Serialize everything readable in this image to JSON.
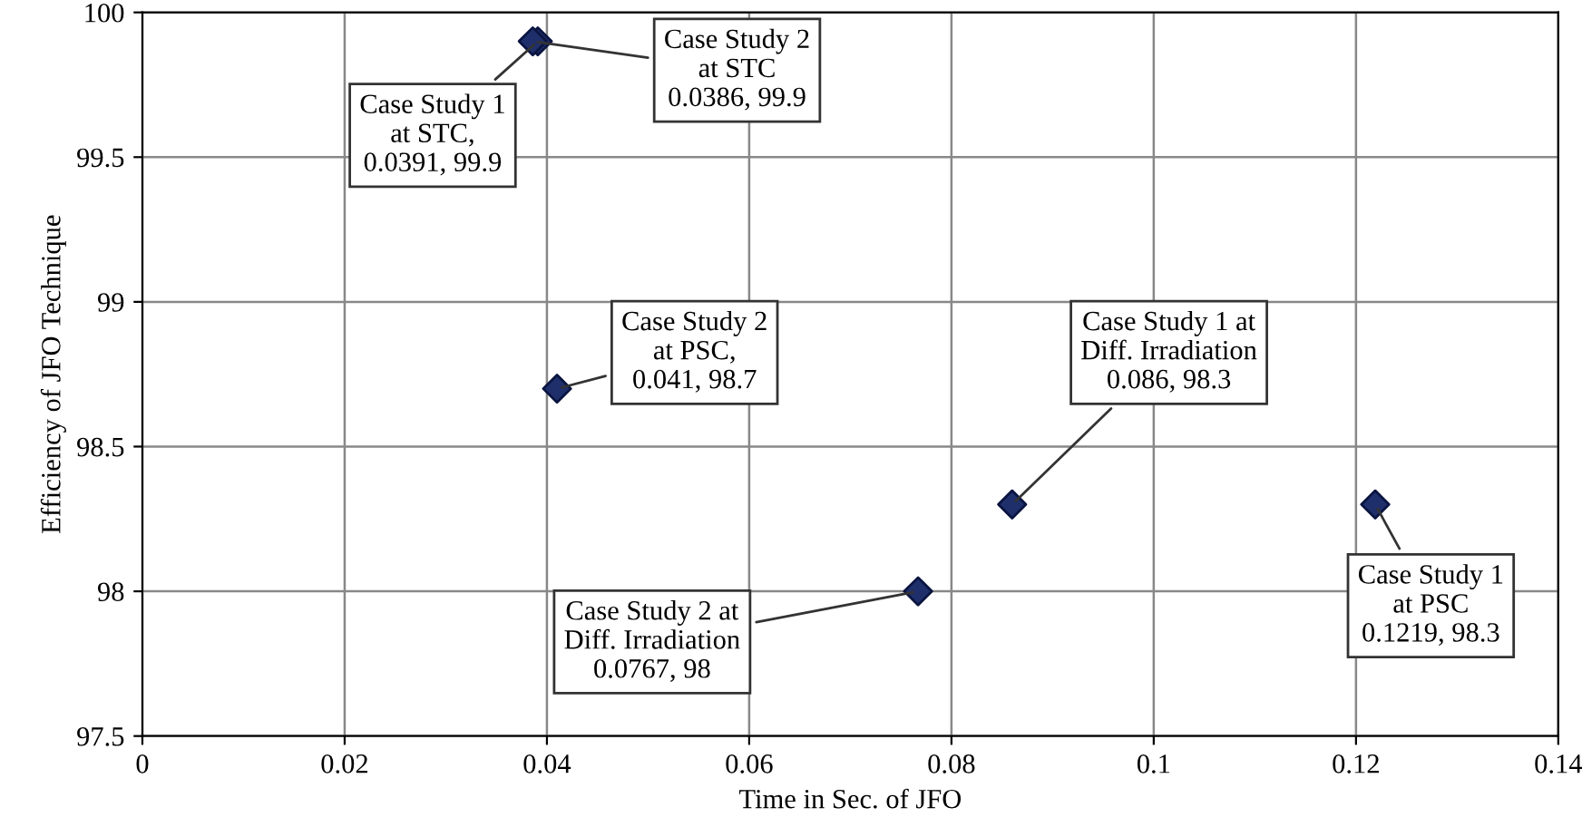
{
  "chart_data": {
    "type": "scatter",
    "xlabel": "Time in Sec. of JFO",
    "ylabel": "Efficiency of JFO Technique",
    "x": [
      0.0391,
      0.0386,
      0.041,
      0.086,
      0.0767,
      0.1219
    ],
    "values": [
      99.9,
      99.9,
      98.7,
      98.3,
      98,
      98.3
    ],
    "color": "#1f2f6b",
    "marker": "diamond",
    "xlim": [
      0,
      0.14
    ],
    "xticks": [
      0,
      0.02,
      0.04,
      0.06,
      0.08,
      0.1,
      0.12,
      0.14
    ],
    "ylim": [
      97.5,
      100
    ],
    "yticks": [
      97.5,
      98,
      98.5,
      99,
      99.5,
      100
    ],
    "grid": true,
    "annotations": [
      {
        "text": "Case Study 1\nat STC,\n0.0391, 99.9",
        "x": 0.0391,
        "y": 99.9
      },
      {
        "text": "Case Study 2\nat STC\n0.0386, 99.9",
        "x": 0.0386,
        "y": 99.9
      },
      {
        "text": "Case Study 2\nat PSC,\n0.041, 98.7",
        "x": 0.041,
        "y": 98.7
      },
      {
        "text": "Case Study 1 at\nDiff. Irradiation\n0.086, 98.3",
        "x": 0.086,
        "y": 98.3
      },
      {
        "text": "Case Study 2 at\nDiff. Irradiation\n0.0767, 98",
        "x": 0.0767,
        "y": 98
      },
      {
        "text": "Case Study 1\nat PSC\n0.1219, 98.3",
        "x": 0.1219,
        "y": 98.3
      }
    ]
  }
}
